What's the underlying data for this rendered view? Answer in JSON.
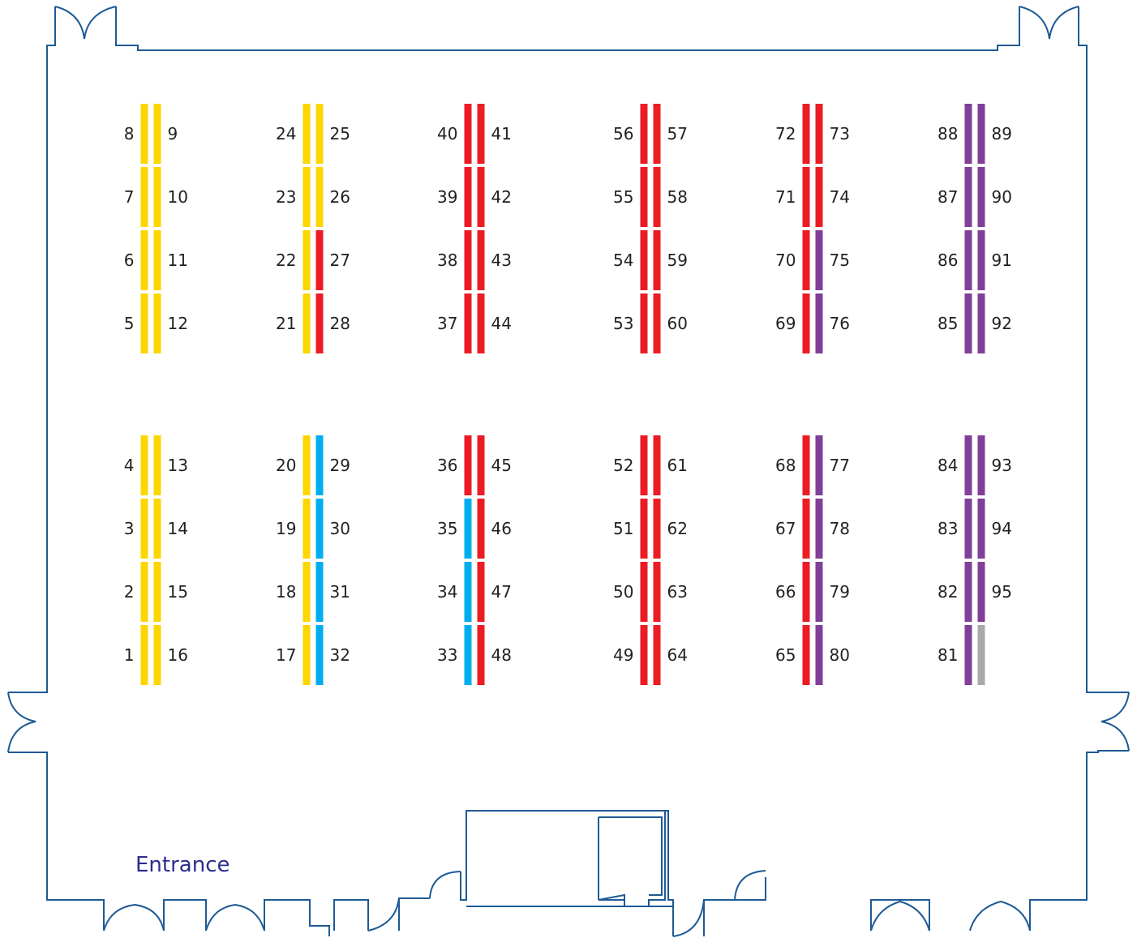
{
  "colors": {
    "wall": "#1e5a96",
    "entrance_text": "#2b2e8c",
    "yellow": "#fcd600",
    "red": "#ec1c24",
    "blue": "#00aeef",
    "purple": "#803f98",
    "gray": "#a7a9ac"
  },
  "entrance_label": "Entrance",
  "booths": [
    {
      "n": "1",
      "color": "yellow"
    },
    {
      "n": "2",
      "color": "yellow"
    },
    {
      "n": "3",
      "color": "yellow"
    },
    {
      "n": "4",
      "color": "yellow"
    },
    {
      "n": "5",
      "color": "yellow"
    },
    {
      "n": "6",
      "color": "yellow"
    },
    {
      "n": "7",
      "color": "yellow"
    },
    {
      "n": "8",
      "color": "yellow"
    },
    {
      "n": "9",
      "color": "yellow"
    },
    {
      "n": "10",
      "color": "yellow"
    },
    {
      "n": "11",
      "color": "yellow"
    },
    {
      "n": "12",
      "color": "yellow"
    },
    {
      "n": "13",
      "color": "yellow"
    },
    {
      "n": "14",
      "color": "yellow"
    },
    {
      "n": "15",
      "color": "yellow"
    },
    {
      "n": "16",
      "color": "yellow"
    },
    {
      "n": "17",
      "color": "yellow"
    },
    {
      "n": "18",
      "color": "yellow"
    },
    {
      "n": "19",
      "color": "yellow"
    },
    {
      "n": "20",
      "color": "yellow"
    },
    {
      "n": "21",
      "color": "yellow"
    },
    {
      "n": "22",
      "color": "yellow"
    },
    {
      "n": "23",
      "color": "yellow"
    },
    {
      "n": "24",
      "color": "yellow"
    },
    {
      "n": "25",
      "color": "yellow"
    },
    {
      "n": "26",
      "color": "yellow"
    },
    {
      "n": "27",
      "color": "red"
    },
    {
      "n": "28",
      "color": "red"
    },
    {
      "n": "29",
      "color": "blue"
    },
    {
      "n": "30",
      "color": "blue"
    },
    {
      "n": "31",
      "color": "blue"
    },
    {
      "n": "32",
      "color": "blue"
    },
    {
      "n": "33",
      "color": "blue"
    },
    {
      "n": "34",
      "color": "blue"
    },
    {
      "n": "35",
      "color": "blue"
    },
    {
      "n": "36",
      "color": "red"
    },
    {
      "n": "37",
      "color": "red"
    },
    {
      "n": "38",
      "color": "red"
    },
    {
      "n": "39",
      "color": "red"
    },
    {
      "n": "40",
      "color": "red"
    },
    {
      "n": "41",
      "color": "red"
    },
    {
      "n": "42",
      "color": "red"
    },
    {
      "n": "43",
      "color": "red"
    },
    {
      "n": "44",
      "color": "red"
    },
    {
      "n": "45",
      "color": "red"
    },
    {
      "n": "46",
      "color": "red"
    },
    {
      "n": "47",
      "color": "red"
    },
    {
      "n": "48",
      "color": "red"
    },
    {
      "n": "49",
      "color": "red"
    },
    {
      "n": "50",
      "color": "red"
    },
    {
      "n": "51",
      "color": "red"
    },
    {
      "n": "52",
      "color": "red"
    },
    {
      "n": "53",
      "color": "red"
    },
    {
      "n": "54",
      "color": "red"
    },
    {
      "n": "55",
      "color": "red"
    },
    {
      "n": "56",
      "color": "red"
    },
    {
      "n": "57",
      "color": "red"
    },
    {
      "n": "58",
      "color": "red"
    },
    {
      "n": "59",
      "color": "red"
    },
    {
      "n": "60",
      "color": "red"
    },
    {
      "n": "61",
      "color": "red"
    },
    {
      "n": "62",
      "color": "red"
    },
    {
      "n": "63",
      "color": "red"
    },
    {
      "n": "64",
      "color": "red"
    },
    {
      "n": "65",
      "color": "red"
    },
    {
      "n": "66",
      "color": "red"
    },
    {
      "n": "67",
      "color": "red"
    },
    {
      "n": "68",
      "color": "red"
    },
    {
      "n": "69",
      "color": "red"
    },
    {
      "n": "70",
      "color": "red"
    },
    {
      "n": "71",
      "color": "red"
    },
    {
      "n": "72",
      "color": "red"
    },
    {
      "n": "73",
      "color": "red"
    },
    {
      "n": "74",
      "color": "red"
    },
    {
      "n": "75",
      "color": "purple"
    },
    {
      "n": "76",
      "color": "purple"
    },
    {
      "n": "77",
      "color": "purple"
    },
    {
      "n": "78",
      "color": "purple"
    },
    {
      "n": "79",
      "color": "purple"
    },
    {
      "n": "80",
      "color": "purple"
    },
    {
      "n": "81",
      "color": "purple"
    },
    {
      "n": "82",
      "color": "purple"
    },
    {
      "n": "83",
      "color": "purple"
    },
    {
      "n": "84",
      "color": "purple"
    },
    {
      "n": "85",
      "color": "purple"
    },
    {
      "n": "86",
      "color": "purple"
    },
    {
      "n": "87",
      "color": "purple"
    },
    {
      "n": "88",
      "color": "purple"
    },
    {
      "n": "89",
      "color": "purple"
    },
    {
      "n": "90",
      "color": "purple"
    },
    {
      "n": "91",
      "color": "purple"
    },
    {
      "n": "92",
      "color": "purple"
    },
    {
      "n": "93",
      "color": "purple"
    },
    {
      "n": "94",
      "color": "purple"
    },
    {
      "n": "95",
      "color": "purple"
    },
    {
      "n": "",
      "color": "gray"
    }
  ]
}
